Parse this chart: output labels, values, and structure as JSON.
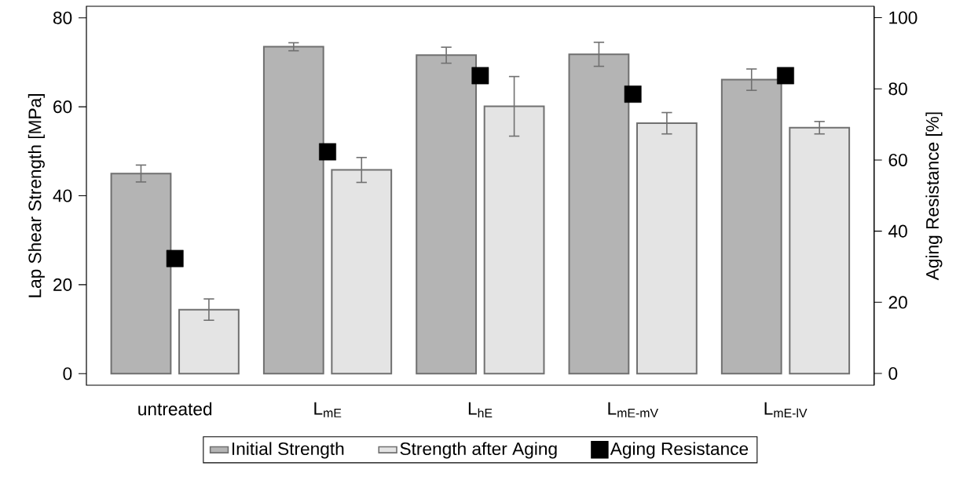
{
  "chart_data": {
    "type": "bar",
    "categories": [
      "untreated",
      "L$_{mE}$",
      "L$_{hE}$",
      "L$_{mE-mV}$",
      "L$_{mE-lV}$"
    ],
    "ylabel": "Lap Shear Strength [MPa]",
    "y2label": "Aging Resistance [%]",
    "ylim": [
      -2.6,
      82.6
    ],
    "yticks": [
      0,
      20,
      40,
      60,
      80
    ],
    "y2lim": [
      -3.3,
      103.2
    ],
    "y2ticks": [
      0,
      20,
      40,
      60,
      80,
      100
    ],
    "legend": "bottom",
    "series": [
      {
        "name": "Initial Strength",
        "color": "#b4b4b4",
        "values": [
          45.0,
          73.5,
          71.6,
          71.8,
          66.1
        ],
        "errors": [
          1.9,
          0.9,
          1.8,
          2.7,
          2.4
        ]
      },
      {
        "name": "Strength after Aging",
        "color": "#e4e4e4",
        "values": [
          14.4,
          45.8,
          60.1,
          56.3,
          55.3
        ],
        "errors": [
          2.4,
          2.8,
          6.7,
          2.4,
          1.4
        ]
      },
      {
        "name": "Aging Resistance",
        "type": "scatter",
        "axis": "y2",
        "color": "#000000",
        "marker": "square",
        "x": [
          "untreated",
          "L$_{mE}$",
          "L$_{hE}$",
          "L$_{mE-mV}$",
          "L$_{mE-lV}$"
        ],
        "values": [
          32.3,
          62.3,
          83.7,
          78.5,
          83.7
        ]
      }
    ]
  }
}
